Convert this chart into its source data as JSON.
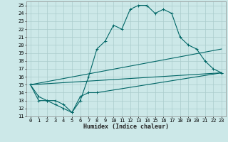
{
  "xlabel": "Humidex (Indice chaleur)",
  "bg_color": "#cce8e8",
  "grid_color": "#aacccc",
  "line_color": "#006666",
  "xlim": [
    -0.5,
    23.5
  ],
  "ylim": [
    11,
    25.5
  ],
  "xtick_labels": [
    "0",
    "1",
    "2",
    "3",
    "4",
    "5",
    "6",
    "7",
    "8",
    "9",
    "10",
    "11",
    "12",
    "13",
    "14",
    "15",
    "16",
    "17",
    "18",
    "19",
    "20",
    "21",
    "22",
    "23"
  ],
  "ytick_labels": [
    "11",
    "12",
    "13",
    "14",
    "15",
    "16",
    "17",
    "18",
    "19",
    "20",
    "21",
    "22",
    "23",
    "24",
    "25"
  ],
  "ytick_vals": [
    11,
    12,
    13,
    14,
    15,
    16,
    17,
    18,
    19,
    20,
    21,
    22,
    23,
    24,
    25
  ],
  "line1_x": [
    0,
    1,
    2,
    3,
    4,
    5,
    6,
    7,
    8,
    9,
    10,
    11,
    12,
    13,
    14,
    15,
    16,
    17,
    18,
    19,
    20,
    21,
    22,
    23
  ],
  "line1_y": [
    15,
    13,
    13,
    12.5,
    12,
    11.5,
    13,
    16,
    19.5,
    20.5,
    22.5,
    22,
    24.5,
    25,
    25,
    24,
    24.5,
    24,
    21,
    20,
    19.5,
    18,
    17,
    16.5
  ],
  "line2_x": [
    0,
    1,
    2,
    3,
    4,
    5,
    6,
    7,
    8,
    23
  ],
  "line2_y": [
    15,
    13.5,
    13,
    13,
    12.5,
    11.5,
    13.5,
    14,
    14,
    16.5
  ],
  "line3_x": [
    0,
    23
  ],
  "line3_y": [
    15,
    16.5
  ],
  "line4_x": [
    0,
    23
  ],
  "line4_y": [
    15,
    19.5
  ]
}
